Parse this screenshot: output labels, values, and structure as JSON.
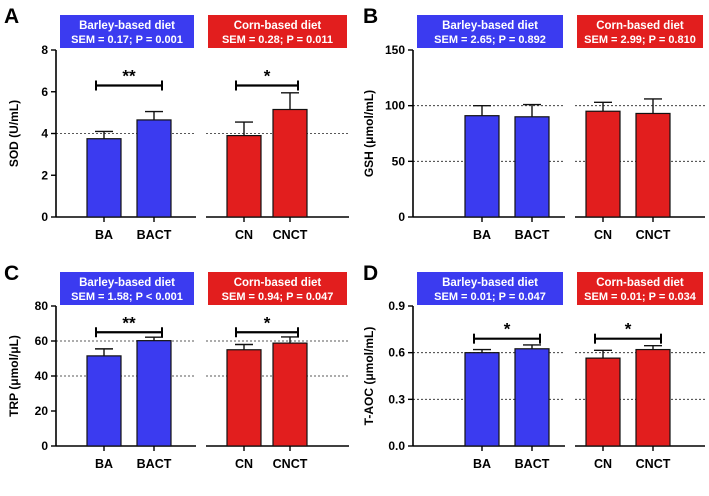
{
  "colors": {
    "barley": "#3b3bf0",
    "corn": "#e21e1e",
    "bar_stroke": "#111111"
  },
  "chart_data": [
    {
      "type": "bar",
      "panel": "A",
      "ylabel": "SOD (U/mL)",
      "ylim": [
        0,
        8
      ],
      "yticks": [
        0,
        2,
        4,
        6,
        8
      ],
      "ytick_labels": [
        "0",
        "2",
        "4",
        "6",
        "8"
      ],
      "reference_lines": [
        4
      ],
      "categories": [
        "BA",
        "BACT",
        "CN",
        "CNCT"
      ],
      "values": [
        3.75,
        4.65,
        3.9,
        5.15
      ],
      "errors": [
        0.35,
        0.4,
        0.65,
        0.8
      ],
      "groups": [
        {
          "name": "Barley-based diet",
          "stats": "SEM = 0.17; P = 0.001",
          "color_key": "barley",
          "significance": "**"
        },
        {
          "name": "Corn-based diet",
          "stats": "SEM = 0.28; P = 0.011",
          "color_key": "corn",
          "significance": "*"
        }
      ],
      "sig_bracket_value": 6.3
    },
    {
      "type": "bar",
      "panel": "B",
      "ylabel": "GSH (μmol/mL)",
      "ylim": [
        0,
        150
      ],
      "yticks": [
        0,
        50,
        100,
        150
      ],
      "ytick_labels": [
        "0",
        "50",
        "100",
        "150"
      ],
      "reference_lines": [
        50,
        100
      ],
      "categories": [
        "BA",
        "BACT",
        "CN",
        "CNCT"
      ],
      "values": [
        91,
        90,
        95,
        93
      ],
      "errors": [
        9,
        11,
        8,
        13
      ],
      "groups": [
        {
          "name": "Barley-based diet",
          "stats": "SEM = 2.65; P = 0.892",
          "color_key": "barley",
          "significance": ""
        },
        {
          "name": "Corn-based diet",
          "stats": "SEM = 2.99; P = 0.810",
          "color_key": "corn",
          "significance": ""
        }
      ]
    },
    {
      "type": "bar",
      "panel": "C",
      "ylabel": "TRP (μmol/μL)",
      "ylim": [
        0,
        80
      ],
      "yticks": [
        0,
        20,
        40,
        60,
        80
      ],
      "ytick_labels": [
        "0",
        "20",
        "40",
        "60",
        "80"
      ],
      "reference_lines": [
        40,
        60
      ],
      "categories": [
        "BA",
        "BACT",
        "CN",
        "CNCT"
      ],
      "values": [
        51.5,
        60.2,
        55,
        58.8
      ],
      "errors": [
        4,
        2,
        3,
        3.5
      ],
      "groups": [
        {
          "name": "Barley-based diet",
          "stats": "SEM = 1.58; P < 0.001",
          "color_key": "barley",
          "significance": "**"
        },
        {
          "name": "Corn-based diet",
          "stats": "SEM = 0.94; P = 0.047",
          "color_key": "corn",
          "significance": "*"
        }
      ],
      "sig_bracket_value": 65
    },
    {
      "type": "bar",
      "panel": "D",
      "ylabel": "T-AOC (μmol/mL)",
      "ylim": [
        0,
        0.9
      ],
      "yticks": [
        0,
        0.3,
        0.6,
        0.9
      ],
      "ytick_labels": [
        "0.0",
        "0.3",
        "0.6",
        "0.9"
      ],
      "reference_lines": [
        0.3,
        0.6
      ],
      "categories": [
        "BA",
        "BACT",
        "CN",
        "CNCT"
      ],
      "values": [
        0.6,
        0.625,
        0.565,
        0.62
      ],
      "errors": [
        0.02,
        0.025,
        0.05,
        0.025
      ],
      "groups": [
        {
          "name": "Barley-based diet",
          "stats": "SEM = 0.01; P = 0.047",
          "color_key": "barley",
          "significance": "*"
        },
        {
          "name": "Corn-based diet",
          "stats": "SEM = 0.01; P = 0.034",
          "color_key": "corn",
          "significance": "*"
        }
      ],
      "sig_bracket_value": 0.69
    }
  ]
}
